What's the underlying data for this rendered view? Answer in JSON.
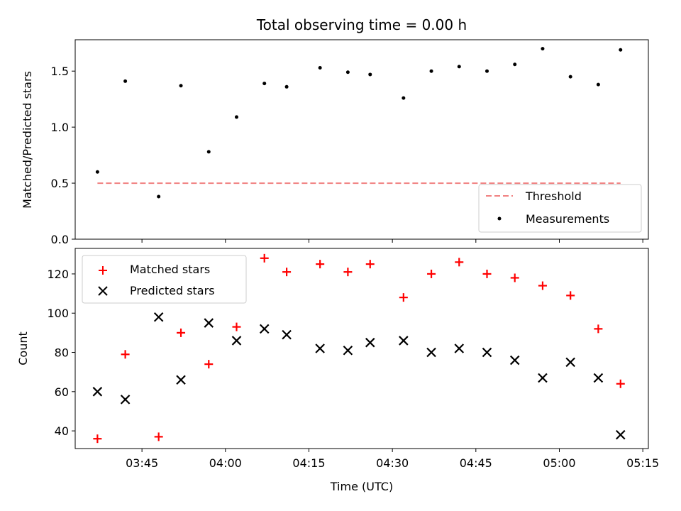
{
  "title": "Total observing time = 0.00 h",
  "colors": {
    "threshold": "#f08080",
    "measurement": "#000000",
    "matched": "#ff0000",
    "predicted": "#000000"
  },
  "chart_data": [
    {
      "type": "scatter",
      "title": "Total observing time = 0.00 h",
      "ylabel": "Matched/Predicted stars",
      "xlabel": "",
      "ylim": [
        0,
        1.78
      ],
      "xlim": [
        "03:33",
        "05:16"
      ],
      "yticks": [
        "0.0",
        "0.5",
        "1.0",
        "1.5"
      ],
      "legend": "lower-right",
      "grid": false,
      "threshold": {
        "name": "Threshold",
        "value": 0.5,
        "x": [
          "03:37",
          "05:11"
        ]
      },
      "series": [
        {
          "name": "Measurements",
          "x": [
            "03:37",
            "03:42",
            "03:48",
            "03:52",
            "03:57",
            "04:02",
            "04:07",
            "04:11",
            "04:17",
            "04:22",
            "04:26",
            "04:32",
            "04:37",
            "04:42",
            "04:47",
            "04:52",
            "04:57",
            "05:02",
            "05:07",
            "05:11"
          ],
          "y": [
            0.6,
            1.41,
            0.38,
            1.37,
            0.78,
            1.09,
            1.39,
            1.36,
            1.53,
            1.49,
            1.47,
            1.26,
            1.5,
            1.54,
            1.5,
            1.56,
            1.7,
            1.45,
            1.38,
            1.69
          ]
        }
      ]
    },
    {
      "type": "scatter",
      "xlabel": "Time (UTC)",
      "ylabel": "Count",
      "ylim": [
        31,
        133
      ],
      "xlim": [
        "03:33",
        "05:16"
      ],
      "xticks": [
        "03:45",
        "04:00",
        "04:15",
        "04:30",
        "04:45",
        "05:00",
        "05:15"
      ],
      "yticks": [
        "40",
        "60",
        "80",
        "100",
        "120"
      ],
      "legend": "top-left",
      "grid": false,
      "series": [
        {
          "name": "Matched stars",
          "marker": "plus",
          "x": [
            "03:37",
            "03:42",
            "03:48",
            "03:52",
            "03:57",
            "04:02",
            "04:07",
            "04:11",
            "04:17",
            "04:22",
            "04:26",
            "04:32",
            "04:37",
            "04:42",
            "04:47",
            "04:52",
            "04:57",
            "05:02",
            "05:07",
            "05:11"
          ],
          "y": [
            36,
            79,
            37,
            90,
            74,
            93,
            128,
            121,
            125,
            121,
            125,
            108,
            120,
            126,
            120,
            118,
            114,
            109,
            92,
            64
          ]
        },
        {
          "name": "Predicted stars",
          "marker": "x",
          "x": [
            "03:37",
            "03:42",
            "03:48",
            "03:52",
            "03:57",
            "04:02",
            "04:07",
            "04:11",
            "04:17",
            "04:22",
            "04:26",
            "04:32",
            "04:37",
            "04:42",
            "04:47",
            "04:52",
            "04:57",
            "05:02",
            "05:07",
            "05:11"
          ],
          "y": [
            60,
            56,
            98,
            66,
            95,
            86,
            92,
            89,
            82,
            81,
            85,
            86,
            80,
            82,
            80,
            76,
            67,
            75,
            67,
            38
          ]
        }
      ]
    }
  ]
}
